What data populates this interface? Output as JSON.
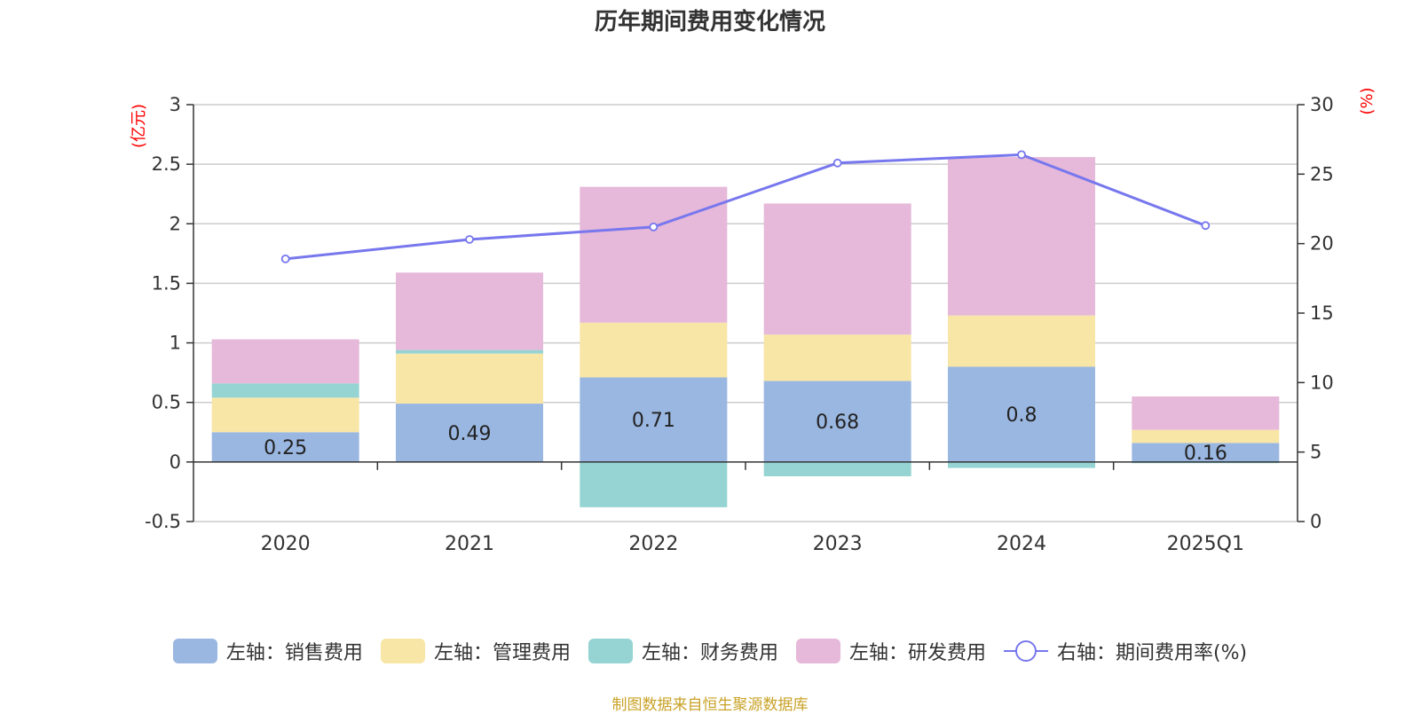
{
  "chart_data": {
    "type": "bar",
    "stacked": true,
    "title": "历年期间费用变化情况",
    "categories": [
      "2020",
      "2021",
      "2022",
      "2023",
      "2024",
      "2025Q1"
    ],
    "left_axis": {
      "unit": "(亿元)",
      "ylim": [
        -0.5,
        3
      ],
      "ticks": [
        "-0.5",
        "0",
        "0.5",
        "1",
        "1.5",
        "2",
        "2.5",
        "3"
      ],
      "tick_values": [
        -0.5,
        0,
        0.5,
        1,
        1.5,
        2,
        2.5,
        3
      ]
    },
    "right_axis": {
      "unit": "(%)",
      "ylim": [
        0,
        30
      ],
      "ticks": [
        "0",
        "5",
        "10",
        "15",
        "20",
        "25",
        "30"
      ],
      "tick_values": [
        0,
        5,
        10,
        15,
        20,
        25,
        30
      ]
    },
    "series": [
      {
        "name": "左轴：销售费用",
        "axis": "left",
        "kind": "bar",
        "color": "#9ab7e1",
        "values": [
          0.25,
          0.49,
          0.71,
          0.68,
          0.8,
          0.16
        ],
        "data_labels": [
          "0.25",
          "0.49",
          "0.71",
          "0.68",
          "0.8",
          "0.16"
        ]
      },
      {
        "name": "左轴：管理费用",
        "axis": "left",
        "kind": "bar",
        "color": "#f8e6a6",
        "values": [
          0.29,
          0.42,
          0.46,
          0.39,
          0.43,
          0.11
        ]
      },
      {
        "name": "左轴：财务费用",
        "axis": "left",
        "kind": "bar",
        "color": "#96d4d4",
        "values": [
          0.12,
          0.03,
          -0.38,
          -0.12,
          -0.05,
          -0.01
        ]
      },
      {
        "name": "左轴：研发费用",
        "axis": "left",
        "kind": "bar",
        "color": "#e6b8d9",
        "values": [
          0.37,
          0.65,
          1.14,
          1.1,
          1.33,
          0.28
        ]
      },
      {
        "name": "右轴：期间费用率(%)",
        "axis": "right",
        "kind": "line",
        "color": "#7777ee",
        "values": [
          18.9,
          20.3,
          21.2,
          25.8,
          26.4,
          21.3
        ]
      }
    ],
    "grid": true,
    "legend_position": "bottom"
  },
  "footer": {
    "source": "制图数据来自恒生聚源数据库"
  }
}
